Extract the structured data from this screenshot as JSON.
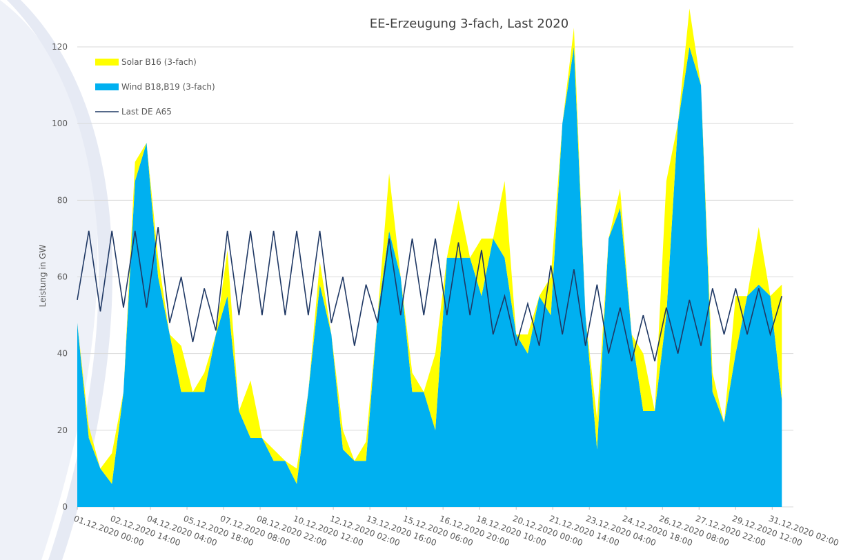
{
  "chart_data": {
    "type": "area",
    "title": "EE-Erzeugung 3-fach, Last 2020",
    "y_label": "Leistung in GW",
    "x": [
      0,
      12,
      24,
      36,
      48,
      60,
      72,
      84,
      96,
      108,
      120,
      132,
      144,
      156,
      168,
      180,
      192,
      204,
      216,
      228,
      240,
      252,
      264,
      276,
      288,
      300,
      312,
      324,
      336,
      348,
      360,
      372,
      384,
      396,
      408,
      420,
      432,
      444,
      456,
      468,
      480,
      492,
      504,
      516,
      528,
      540,
      552,
      564,
      576,
      588,
      600,
      612,
      624,
      636,
      648,
      660,
      672,
      684,
      696,
      708,
      720,
      732
    ],
    "xlim": [
      0,
      744
    ],
    "xticks": [
      {
        "value": 0,
        "label": "01.12.2020 00:00"
      },
      {
        "value": 38,
        "label": "02.12.2020 14:00"
      },
      {
        "value": 76,
        "label": "04.12.2020 04:00"
      },
      {
        "value": 114,
        "label": "05.12.2020 18:00"
      },
      {
        "value": 152,
        "label": "07.12.2020 08:00"
      },
      {
        "value": 190,
        "label": "08.12.2020 22:00"
      },
      {
        "value": 228,
        "label": "10.12.2020 12:00"
      },
      {
        "value": 266,
        "label": "12.12.2020 02:00"
      },
      {
        "value": 304,
        "label": "13.12.2020 16:00"
      },
      {
        "value": 342,
        "label": "15.12.2020 06:00"
      },
      {
        "value": 380,
        "label": "16.12.2020 20:00"
      },
      {
        "value": 418,
        "label": "18.12.2020 10:00"
      },
      {
        "value": 456,
        "label": "20.12.2020 00:00"
      },
      {
        "value": 494,
        "label": "21.12.2020 14:00"
      },
      {
        "value": 532,
        "label": "23.12.2020 04:00"
      },
      {
        "value": 570,
        "label": "24.12.2020 18:00"
      },
      {
        "value": 608,
        "label": "26.12.2020 08:00"
      },
      {
        "value": 646,
        "label": "27.12.2020 22:00"
      },
      {
        "value": 684,
        "label": "29.12.2020 12:00"
      },
      {
        "value": 722,
        "label": "31.12.2020 02:00"
      }
    ],
    "ylim": [
      0,
      120
    ],
    "yticks": [
      0,
      20,
      40,
      60,
      80,
      100,
      120
    ],
    "grid": true,
    "legend": "upper left",
    "series": [
      {
        "name": "Wind B18,B19 (3-fach)",
        "color": "#00b0f0",
        "kind": "area",
        "values": [
          48,
          18,
          10,
          6,
          30,
          85,
          95,
          60,
          45,
          30,
          30,
          30,
          45,
          55,
          25,
          18,
          18,
          12,
          12,
          6,
          30,
          58,
          45,
          15,
          12,
          12,
          50,
          72,
          60,
          30,
          30,
          20,
          65,
          65,
          65,
          55,
          70,
          65,
          45,
          40,
          55,
          50,
          100,
          120,
          50,
          15,
          70,
          78,
          45,
          25,
          25,
          50,
          100,
          120,
          110,
          30,
          22,
          40,
          55,
          58,
          55,
          28
        ]
      },
      {
        "name": "Solar B16 (3-fach)",
        "color": "#ffff00",
        "kind": "area",
        "values": [
          0,
          3,
          0,
          8,
          0,
          5,
          0,
          5,
          0,
          12,
          0,
          5,
          0,
          12,
          0,
          15,
          0,
          3,
          0,
          4,
          0,
          6,
          0,
          5,
          0,
          5,
          0,
          15,
          0,
          5,
          0,
          20,
          0,
          15,
          0,
          15,
          0,
          20,
          0,
          5,
          0,
          10,
          0,
          5,
          0,
          8,
          0,
          5,
          0,
          15,
          0,
          35,
          0,
          10,
          0,
          5,
          0,
          15,
          0,
          15,
          0,
          30
        ]
      },
      {
        "name": "Last DE A65",
        "color": "#1f3864",
        "kind": "line",
        "values": [
          54,
          72,
          51,
          72,
          52,
          72,
          52,
          73,
          48,
          60,
          43,
          57,
          46,
          72,
          50,
          72,
          50,
          72,
          50,
          72,
          50,
          72,
          48,
          60,
          42,
          58,
          48,
          70,
          50,
          70,
          50,
          70,
          50,
          69,
          50,
          67,
          45,
          55,
          42,
          53,
          42,
          63,
          45,
          62,
          42,
          58,
          40,
          52,
          38,
          50,
          38,
          52,
          40,
          54,
          42,
          57,
          45,
          57,
          45,
          57,
          45,
          55
        ]
      }
    ]
  }
}
